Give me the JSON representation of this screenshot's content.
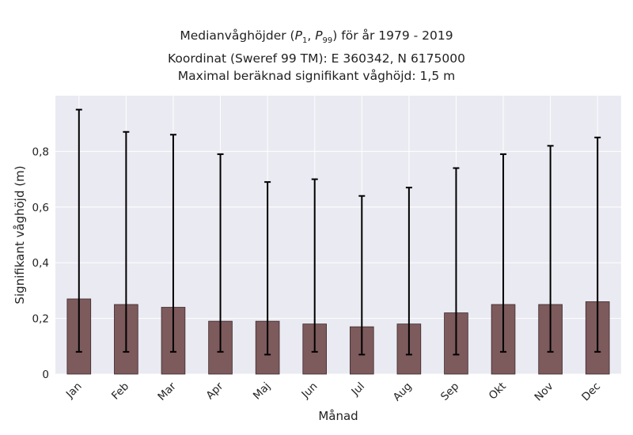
{
  "chart_data": {
    "type": "bar",
    "title_lines": [
      "Medianvåghöjder (P1, P99) för år 1979 - 2019",
      "Koordinat (Sweref 99 TM): E 360342, N 6175000",
      "Maximal beräknad signifikant våghöjd: 1,5 m"
    ],
    "xlabel": "Månad",
    "ylabel": "Signifikant våghöjd (m)",
    "categories": [
      "Jan",
      "Feb",
      "Mar",
      "Apr",
      "Maj",
      "Jun",
      "Jul",
      "Aug",
      "Sep",
      "Okt",
      "Nov",
      "Dec"
    ],
    "values": [
      0.27,
      0.25,
      0.24,
      0.19,
      0.19,
      0.18,
      0.17,
      0.18,
      0.22,
      0.25,
      0.25,
      0.26
    ],
    "p1": [
      0.08,
      0.08,
      0.08,
      0.08,
      0.07,
      0.08,
      0.07,
      0.07,
      0.07,
      0.08,
      0.08,
      0.08
    ],
    "p99": [
      0.95,
      0.87,
      0.86,
      0.79,
      0.69,
      0.7,
      0.64,
      0.67,
      0.74,
      0.79,
      0.82,
      0.85
    ],
    "yticks": [
      "0",
      "0,2",
      "0,4",
      "0,6",
      "0,8"
    ],
    "ytick_values": [
      0,
      0.2,
      0.4,
      0.6,
      0.8
    ],
    "ylim": [
      0,
      1.0
    ],
    "grid": true,
    "bar_color": "#7d5a5c",
    "plot_background": "#eaeaf2",
    "errorbar_color": "#000000"
  }
}
